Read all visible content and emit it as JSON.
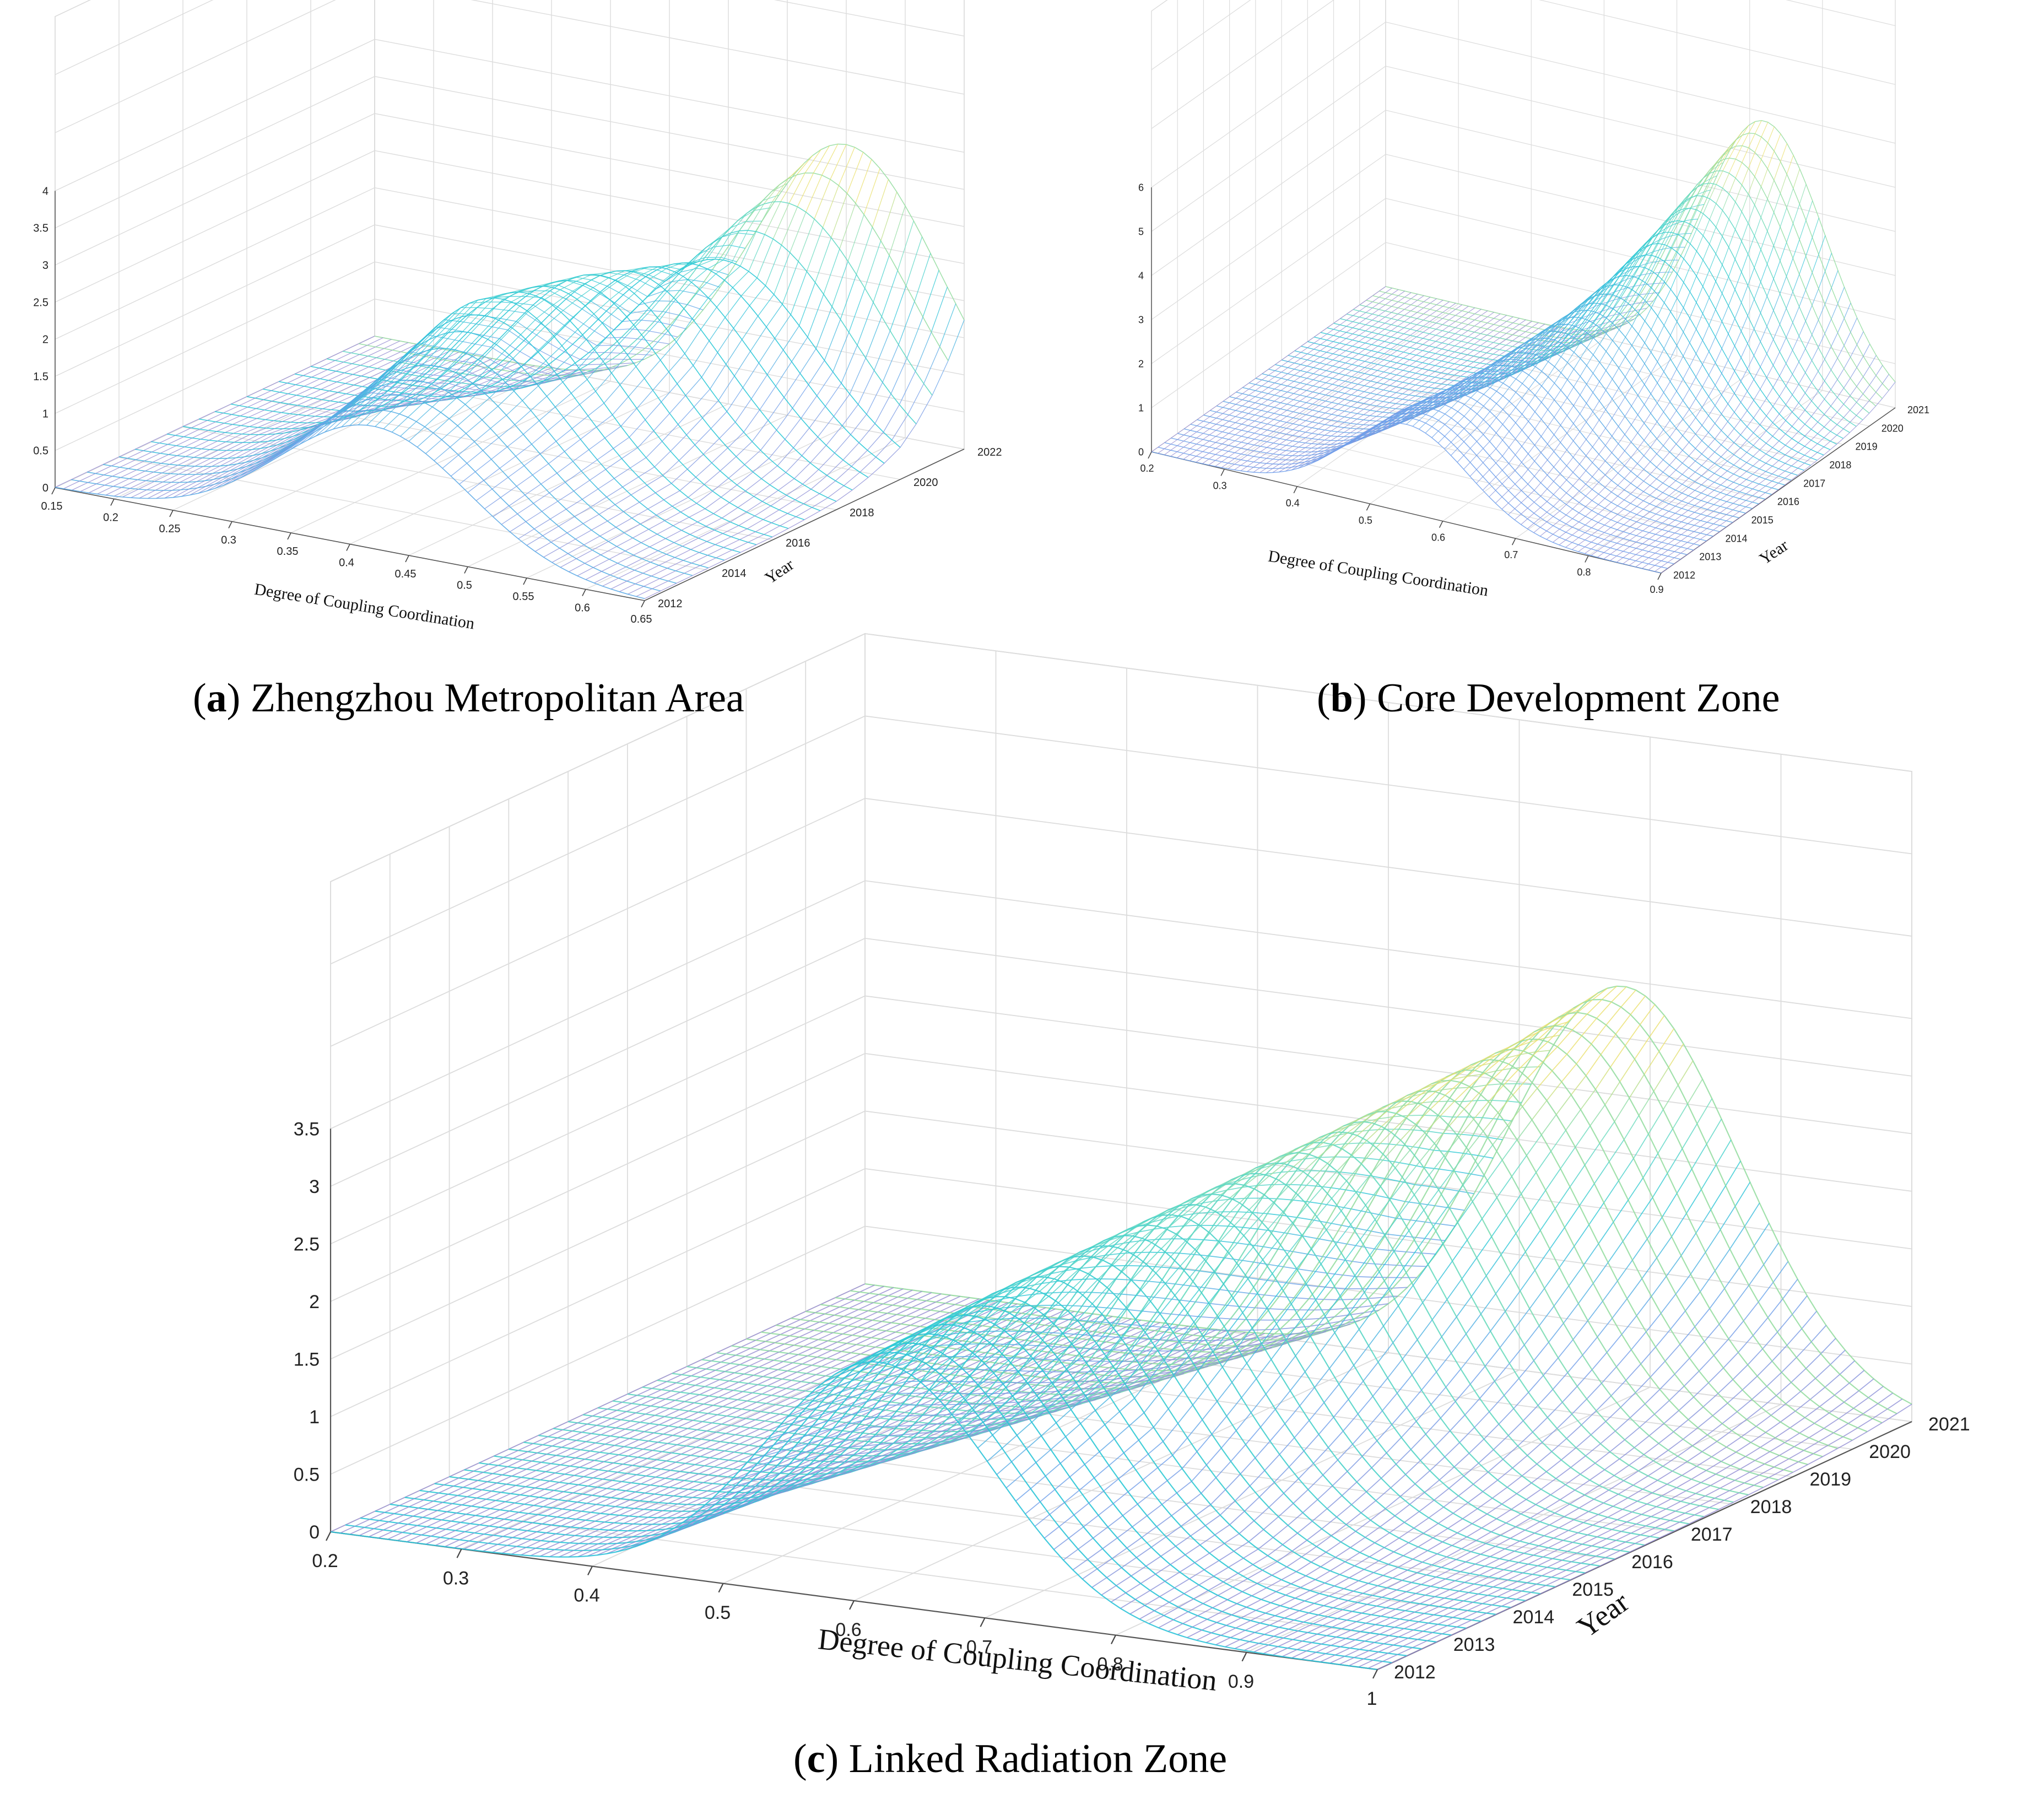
{
  "chart_data": [
    {
      "type": "surface",
      "panel": "a",
      "caption_letter": "a",
      "caption_text": "Zhengzhou Metropolitan Area",
      "xlabel": "Degree of Coupling Coordination",
      "ylabel": "Year",
      "zlabel": "",
      "xlim": [
        0.15,
        0.65
      ],
      "xticks": [
        "0.15",
        "0.2",
        "0.25",
        "0.3",
        "0.35",
        "0.4",
        "0.45",
        "0.5",
        "0.55",
        "0.6",
        "0.65"
      ],
      "yticks": [
        "2012",
        "2014",
        "2016",
        "2018",
        "2020",
        "2022"
      ],
      "zticks": [
        "0",
        "0.5",
        "1",
        "1.5",
        "2",
        "2.5",
        "3",
        "3.5",
        "4"
      ],
      "zlim": [
        0,
        4
      ],
      "years": [
        2012,
        2014,
        2016,
        2018,
        2020,
        2022
      ],
      "peaks": [
        {
          "year": 2012,
          "location": 0.42,
          "height": 1.65
        },
        {
          "year": 2014,
          "location": 0.42,
          "height": 2.05
        },
        {
          "year": 2016,
          "location": 0.42,
          "height": 2.55
        },
        {
          "year": 2018,
          "location": 0.45,
          "height": 2.55
        },
        {
          "year": 2020,
          "location": 0.5,
          "height": 2.5
        },
        {
          "year": 2022,
          "location": 0.55,
          "height": 3.8
        }
      ]
    },
    {
      "type": "surface",
      "panel": "b",
      "caption_letter": "b",
      "caption_text": "Core Development Zone",
      "xlabel": "Degree of Coupling Coordination",
      "ylabel": "Year",
      "zlabel": "",
      "xlim": [
        0.2,
        0.9
      ],
      "xticks": [
        "0.2",
        "0.3",
        "0.4",
        "0.5",
        "0.6",
        "0.7",
        "0.8",
        "0.9"
      ],
      "yticks": [
        "2012",
        "2013",
        "2014",
        "2015",
        "2016",
        "2017",
        "2018",
        "2019",
        "2020",
        "2021"
      ],
      "zticks": [
        "0",
        "1",
        "2",
        "3",
        "4",
        "5",
        "6"
      ],
      "zlim": [
        0,
        6
      ],
      "years": [
        2012,
        2013,
        2014,
        2015,
        2016,
        2017,
        2018,
        2019,
        2020,
        2021
      ],
      "peaks": [
        {
          "year": 2012,
          "location": 0.55,
          "height": 2.0
        },
        {
          "year": 2013,
          "location": 0.56,
          "height": 2.1
        },
        {
          "year": 2014,
          "location": 0.58,
          "height": 2.2
        },
        {
          "year": 2015,
          "location": 0.6,
          "height": 2.4
        },
        {
          "year": 2016,
          "location": 0.62,
          "height": 2.7
        },
        {
          "year": 2017,
          "location": 0.64,
          "height": 3.0
        },
        {
          "year": 2018,
          "location": 0.66,
          "height": 3.5
        },
        {
          "year": 2019,
          "location": 0.68,
          "height": 4.2
        },
        {
          "year": 2020,
          "location": 0.7,
          "height": 5.0
        },
        {
          "year": 2021,
          "location": 0.72,
          "height": 5.8
        }
      ]
    },
    {
      "type": "surface",
      "panel": "c",
      "caption_letter": "c",
      "caption_text": "Linked Radiation Zone",
      "xlabel": "Degree of Coupling Coordination",
      "ylabel": "Year",
      "zlabel": "",
      "xlim": [
        0.2,
        1.0
      ],
      "xticks": [
        "0.2",
        "0.3",
        "0.4",
        "0.5",
        "0.6",
        "0.7",
        "0.8",
        "0.9",
        "1"
      ],
      "yticks": [
        "2012",
        "2013",
        "2014",
        "2015",
        "2016",
        "2017",
        "2018",
        "2019",
        "2020",
        "2021"
      ],
      "zticks": [
        "0",
        "0.5",
        "1",
        "1.5",
        "2",
        "2.5",
        "3",
        "3.5"
      ],
      "zlim": [
        0,
        3.5
      ],
      "years": [
        2012,
        2013,
        2014,
        2015,
        2016,
        2017,
        2018,
        2019,
        2020,
        2021
      ],
      "peaks": [
        {
          "year": 2012,
          "location": 0.62,
          "height": 2.1
        },
        {
          "year": 2013,
          "location": 0.63,
          "height": 2.2
        },
        {
          "year": 2014,
          "location": 0.64,
          "height": 2.3
        },
        {
          "year": 2015,
          "location": 0.66,
          "height": 2.45
        },
        {
          "year": 2016,
          "location": 0.68,
          "height": 2.6
        },
        {
          "year": 2017,
          "location": 0.7,
          "height": 2.75
        },
        {
          "year": 2018,
          "location": 0.72,
          "height": 2.9
        },
        {
          "year": 2019,
          "location": 0.74,
          "height": 3.05
        },
        {
          "year": 2020,
          "location": 0.76,
          "height": 3.2
        },
        {
          "year": 2021,
          "location": 0.78,
          "height": 3.45
        }
      ]
    }
  ]
}
